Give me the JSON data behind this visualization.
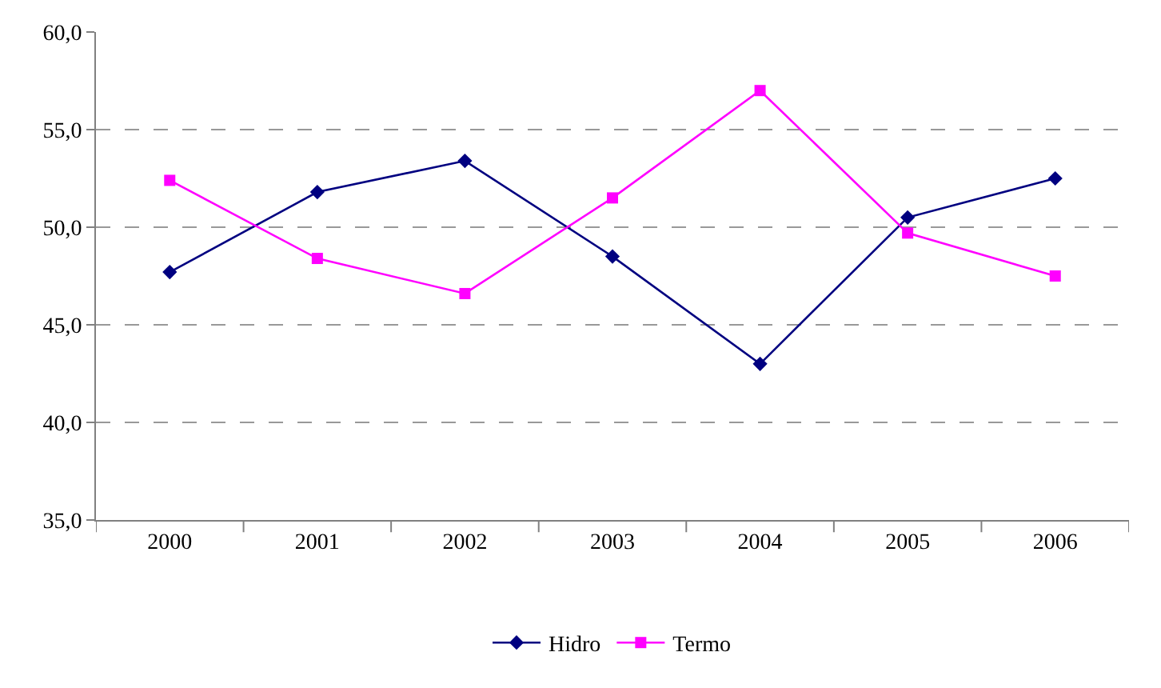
{
  "chart_data": {
    "type": "line",
    "categories": [
      "2000",
      "2001",
      "2002",
      "2003",
      "2004",
      "2005",
      "2006"
    ],
    "series": [
      {
        "name": "Hidro",
        "color": "#000080",
        "marker": "diamond",
        "values": [
          47.7,
          51.8,
          53.4,
          48.5,
          43.0,
          50.5,
          52.5
        ]
      },
      {
        "name": "Termo",
        "color": "#ff00ff",
        "marker": "square",
        "values": [
          52.4,
          48.4,
          46.6,
          51.5,
          57.0,
          49.7,
          47.5
        ]
      }
    ],
    "ylim": [
      35,
      60
    ],
    "yticks": [
      {
        "value": 35,
        "label": "35,0"
      },
      {
        "value": 40,
        "label": "40,0"
      },
      {
        "value": 45,
        "label": "45,0"
      },
      {
        "value": 50,
        "label": "50,0"
      },
      {
        "value": 55,
        "label": "55,0"
      },
      {
        "value": 60,
        "label": "60,0"
      }
    ],
    "grid": "y",
    "legend": "bottom",
    "line_style": "solid"
  }
}
